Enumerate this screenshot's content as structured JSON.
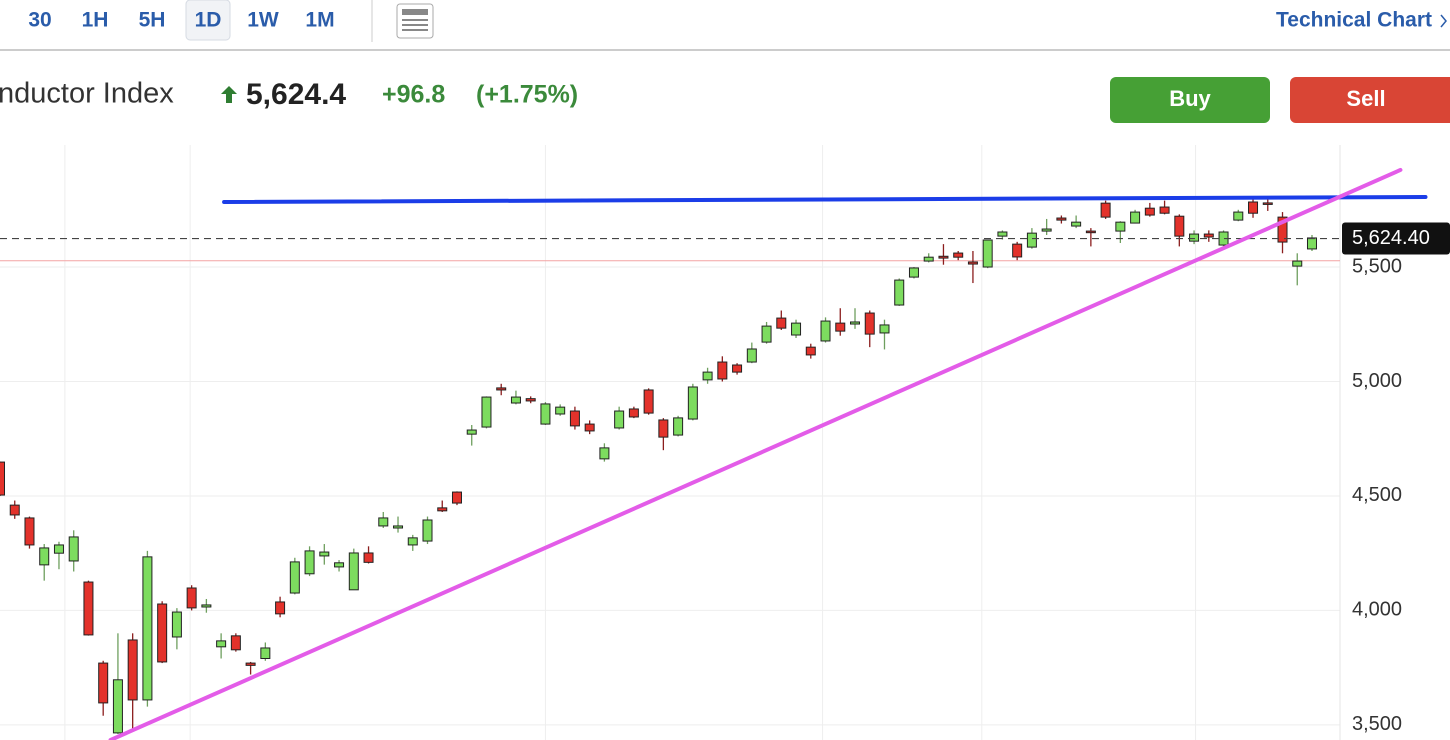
{
  "toolbar": {
    "intervals": [
      "30",
      "1H",
      "5H",
      "1D",
      "1W",
      "1M"
    ],
    "selected_index": 3,
    "link": "Technical Chart"
  },
  "header": {
    "name": "nductor Index",
    "price": "5,624.4",
    "change": "+96.8",
    "change_pct": "(+1.75%)",
    "buy": "Buy",
    "sell": "Sell"
  },
  "chart_data": {
    "type": "candlestick",
    "up_color": "#7ddc5f",
    "down_color": "#e3322b",
    "xlim": [
      0,
      90.9
    ],
    "ylim": [
      3434,
      6033
    ],
    "yticks": [
      {
        "value": 3500,
        "label": "3,500"
      },
      {
        "value": 4000,
        "label": "4,000"
      },
      {
        "value": 4500,
        "label": "4,500"
      },
      {
        "value": 5000,
        "label": "5,000"
      },
      {
        "value": 5500,
        "label": "5,500"
      }
    ],
    "xgrid": [
      4.4,
      12.9,
      37.0,
      55.8,
      66.6,
      81.1
    ],
    "grid": true,
    "last_price": {
      "value": 5624.4,
      "label": "5,624.40"
    },
    "prev_close": 5527.6,
    "open": [
      4648,
      4460,
      4404,
      4199,
      4250,
      4216,
      4124,
      3770,
      3465,
      3871,
      3609,
      4028,
      3884,
      4098,
      4015,
      3841,
      3889,
      3770,
      3790,
      4037,
      4076,
      4160,
      4238,
      4190,
      4090,
      4251,
      4369,
      4360,
      4286,
      4303,
      4448,
      4517,
      4770,
      4801,
      4972,
      4906,
      4925,
      4814,
      4858,
      4871,
      4814,
      4662,
      4797,
      4880,
      4963,
      4832,
      4766,
      4836,
      5007,
      5085,
      5072,
      5085,
      5172,
      5277,
      5203,
      5150,
      5177,
      5255,
      5251,
      5299,
      5212,
      5334,
      5456,
      5526,
      5547,
      5561,
      5522,
      5500,
      5635,
      5600,
      5587,
      5657,
      5714,
      5679,
      5657,
      5779,
      5657,
      5692,
      5757,
      5762,
      5722,
      5613,
      5644,
      5596,
      5705,
      5784,
      5780,
      5718,
      5504,
      5579
    ],
    "high": [
      4650,
      4480,
      4410,
      4290,
      4300,
      4350,
      4130,
      3780,
      3900,
      3900,
      4260,
      4040,
      4010,
      4110,
      4050,
      3900,
      3900,
      3775,
      3860,
      4060,
      4230,
      4280,
      4290,
      4220,
      4270,
      4280,
      4430,
      4410,
      4330,
      4410,
      4480,
      4520,
      4810,
      4935,
      4990,
      4960,
      4935,
      4910,
      4900,
      4890,
      4830,
      4730,
      4890,
      4890,
      4970,
      4840,
      4850,
      4990,
      5060,
      5110,
      5080,
      5170,
      5260,
      5310,
      5270,
      5165,
      5280,
      5320,
      5320,
      5310,
      5270,
      5450,
      5500,
      5560,
      5600,
      5570,
      5570,
      5620,
      5660,
      5610,
      5670,
      5710,
      5725,
      5725,
      5670,
      5790,
      5700,
      5750,
      5780,
      5790,
      5730,
      5660,
      5660,
      5660,
      5750,
      5800,
      5800,
      5740,
      5560,
      5640
    ],
    "low": [
      4500,
      4400,
      4270,
      4130,
      4180,
      4170,
      3890,
      3540,
      3460,
      3480,
      3580,
      3770,
      3830,
      4000,
      3990,
      3790,
      3820,
      3720,
      3780,
      3970,
      4070,
      4150,
      4200,
      4170,
      4090,
      4205,
      4360,
      4340,
      4260,
      4290,
      4430,
      4460,
      4720,
      4795,
      4940,
      4900,
      4905,
      4810,
      4850,
      4790,
      4770,
      4650,
      4790,
      4840,
      4855,
      4700,
      4760,
      4830,
      4990,
      5000,
      5030,
      5080,
      5165,
      5225,
      5190,
      5100,
      5170,
      5200,
      5230,
      5150,
      5140,
      5330,
      5450,
      5520,
      5510,
      5530,
      5430,
      5495,
      5620,
      5530,
      5580,
      5640,
      5690,
      5670,
      5590,
      5710,
      5605,
      5690,
      5720,
      5730,
      5590,
      5600,
      5610,
      5590,
      5700,
      5715,
      5745,
      5560,
      5420,
      5570
    ],
    "close": [
      4504,
      4417,
      4286,
      4273,
      4286,
      4321,
      3893,
      3596,
      3697,
      3609,
      4234,
      3775,
      3993,
      4011,
      4024,
      3867,
      3828,
      3760,
      3836,
      3985,
      4212,
      4260,
      4255,
      4208,
      4251,
      4210,
      4404,
      4369,
      4317,
      4395,
      4435,
      4469,
      4788,
      4932,
      4963,
      4932,
      4915,
      4902,
      4888,
      4806,
      4784,
      4710,
      4871,
      4845,
      4862,
      4757,
      4841,
      4976,
      5041,
      5011,
      5041,
      5142,
      5242,
      5233,
      5255,
      5116,
      5264,
      5220,
      5260,
      5207,
      5247,
      5443,
      5496,
      5543,
      5539,
      5543,
      5513,
      5618,
      5653,
      5544,
      5648,
      5666,
      5705,
      5696,
      5650,
      5718,
      5696,
      5740,
      5727,
      5735,
      5635,
      5644,
      5631,
      5653,
      5740,
      5735,
      5776,
      5609,
      5526,
      5627
    ],
    "trendlines": [
      {
        "color": "#1b3de8",
        "x": [
          15.2,
          96.7
        ],
        "y": [
          5784,
          5806
        ]
      },
      {
        "color": "#e35ce8",
        "x": [
          7.5,
          95.0
        ],
        "y": [
          3434,
          5924
        ]
      }
    ]
  }
}
